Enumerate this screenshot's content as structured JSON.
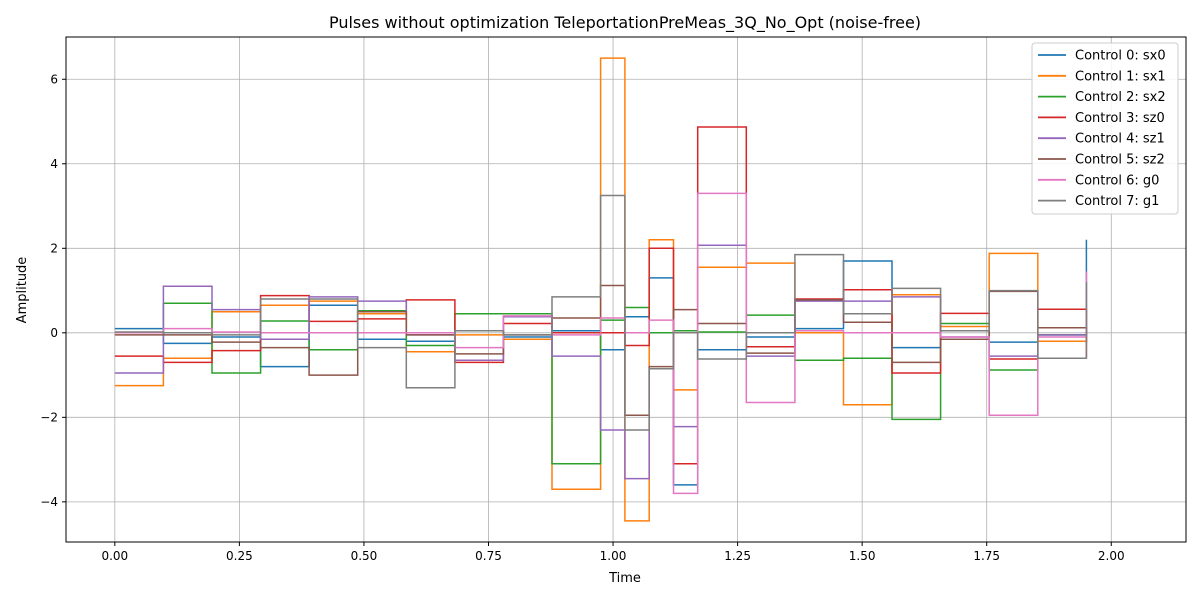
{
  "chart_data": {
    "type": "line",
    "title": "Pulses without optimization TeleportationPreMeas_3Q_No_Opt (noise-free)",
    "xlabel": "Time",
    "ylabel": "Amplitude",
    "xlim": [
      -0.098,
      2.15
    ],
    "ylim": [
      -4.95,
      7.0
    ],
    "xticks": [
      "0.00",
      "0.25",
      "0.50",
      "0.75",
      "1.00",
      "1.25",
      "1.50",
      "1.75",
      "2.00"
    ],
    "xtick_values": [
      0.0,
      0.25,
      0.5,
      0.75,
      1.0,
      1.25,
      1.5,
      1.75,
      2.0
    ],
    "yticks": [
      "−4",
      "−2",
      "0",
      "2",
      "4",
      "6"
    ],
    "ytick_values": [
      -4,
      -2,
      0,
      2,
      4,
      6
    ],
    "grid": true,
    "legend_position": "top-right",
    "step_edges": [
      0.0,
      0.0975,
      0.195,
      0.2925,
      0.39,
      0.4875,
      0.585,
      0.6825,
      0.78,
      0.8775,
      0.975,
      1.0238,
      1.0725,
      1.1213,
      1.17,
      1.2675,
      1.365,
      1.4625,
      1.56,
      1.6575,
      1.755,
      1.8525,
      1.95
    ],
    "series": [
      {
        "name": "Control 0: sx0",
        "color": "#1f77b4",
        "values": [
          0.1,
          -0.25,
          -0.1,
          -0.8,
          0.65,
          -0.15,
          -0.2,
          0.05,
          -0.1,
          0.05,
          -0.4,
          0.38,
          1.3,
          -3.6,
          -0.4,
          -0.1,
          0.1,
          1.7,
          -0.35,
          0.05,
          -0.22,
          -0.05,
          2.2
        ]
      },
      {
        "name": "Control 1: sx1",
        "color": "#ff7f0e",
        "values": [
          -1.25,
          -0.6,
          0.5,
          0.65,
          0.75,
          0.45,
          -0.45,
          -0.05,
          -0.15,
          -3.7,
          6.5,
          -4.45,
          2.2,
          -1.35,
          1.55,
          1.65,
          0.0,
          -1.7,
          0.9,
          0.15,
          1.88,
          -0.2,
          0.0
        ]
      },
      {
        "name": "Control 2: sx2",
        "color": "#2ca02c",
        "values": [
          0.0,
          0.7,
          -0.95,
          0.28,
          -0.4,
          0.52,
          -0.3,
          0.45,
          0.45,
          -3.1,
          0.3,
          0.6,
          0.0,
          0.05,
          0.02,
          0.42,
          -0.65,
          -0.6,
          -2.05,
          0.22,
          -0.88,
          -0.05,
          -0.05
        ]
      },
      {
        "name": "Control 3: sz0",
        "color": "#d62728",
        "values": [
          -0.55,
          -0.7,
          -0.42,
          0.88,
          0.27,
          0.33,
          0.78,
          -0.7,
          0.22,
          0.0,
          0.0,
          -0.3,
          2.0,
          -3.1,
          4.87,
          -0.33,
          0.8,
          1.02,
          -0.95,
          0.46,
          -0.62,
          0.56,
          -0.58
        ]
      },
      {
        "name": "Control 4: sz1",
        "color": "#9467bd",
        "values": [
          -0.95,
          1.1,
          0.55,
          -0.15,
          0.85,
          0.75,
          -0.05,
          -0.65,
          0.38,
          -0.55,
          -2.3,
          -3.45,
          -0.85,
          -2.22,
          2.07,
          -0.55,
          0.75,
          0.75,
          0.85,
          -0.1,
          -0.55,
          -0.05,
          0.12
        ]
      },
      {
        "name": "Control 5: sz2",
        "color": "#8c564b",
        "values": [
          -0.05,
          -0.05,
          -0.22,
          -0.35,
          -1.0,
          0.5,
          -0.05,
          -0.5,
          -0.05,
          0.35,
          1.12,
          -1.95,
          -0.8,
          0.55,
          0.22,
          -0.48,
          0.78,
          0.25,
          -0.7,
          -0.15,
          0.98,
          0.12,
          -0.25
        ]
      },
      {
        "name": "Control 6: g0",
        "color": "#e377c2",
        "values": [
          0.0,
          0.1,
          0.02,
          0.0,
          0.0,
          0.0,
          0.0,
          -0.35,
          0.4,
          -0.05,
          0.35,
          0.0,
          0.3,
          -3.8,
          3.3,
          -1.65,
          0.05,
          0.0,
          0.0,
          -0.1,
          -1.95,
          -0.1,
          1.45
        ]
      },
      {
        "name": "Control 7: g1",
        "color": "#7f7f7f",
        "values": [
          0.02,
          0.0,
          -0.05,
          0.8,
          0.8,
          -0.35,
          -1.3,
          0.05,
          -0.05,
          0.85,
          3.25,
          -2.3,
          -0.85,
          0.0,
          -0.62,
          0.0,
          1.85,
          0.45,
          1.05,
          0.05,
          1.0,
          -0.6,
          1.2
        ]
      }
    ]
  }
}
